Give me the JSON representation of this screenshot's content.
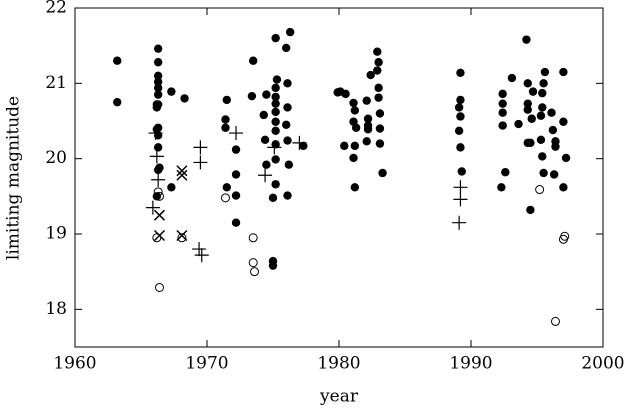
{
  "chart_data": {
    "type": "scatter",
    "x_label": "year",
    "y_label": "limiting magnitude",
    "xlim": [
      1960,
      2000
    ],
    "ylim": [
      17.5,
      22
    ],
    "xticks": [
      1960,
      1970,
      1980,
      1990,
      2000
    ],
    "yticks": [
      18,
      19,
      20,
      21,
      22
    ],
    "series": [
      {
        "marker": "filled-circle",
        "color": "#000000",
        "x": [
          1963.2,
          1963.2,
          1966.3,
          1966.3,
          1966.3,
          1966.3,
          1966.3,
          1966.3,
          1966.2,
          1966.3,
          1966.2,
          1966.3,
          1966.2,
          1966.3,
          1966.3,
          1966.4,
          1966.3,
          1966.2,
          1967.3,
          1968.3,
          1967.3,
          1971.4,
          1971.5,
          1971.4,
          1971.5,
          1972.2,
          1972.2,
          1972.2,
          1972.2,
          1973.5,
          1973.4,
          1974.5,
          1975.2,
          1975.3,
          1975.2,
          1975.2,
          1975.2,
          1975.2,
          1975.2,
          1975.2,
          1975.2,
          1975.2,
          1975.2,
          1975.0,
          1975.0,
          1975.0,
          1976.0,
          1976.3,
          1976.1,
          1976.1,
          1976.0,
          1976.1,
          1976.2,
          1976.1,
          1974.4,
          1974.5,
          1974.3,
          1977.3,
          1979.9,
          1980.1,
          1980.5,
          1980.4,
          1981.1,
          1981.2,
          1981.1,
          1981.3,
          1981.2,
          1981.1,
          1981.2,
          1982.1,
          1982.2,
          1982.2,
          1982.2,
          1982.1,
          1982.4,
          1982.9,
          1983.0,
          1982.9,
          1983.0,
          1983.0,
          1983.1,
          1983.1,
          1983.1,
          1983.3,
          1989.2,
          1989.2,
          1989.1,
          1989.2,
          1989.1,
          1989.2,
          1989.3,
          1992.4,
          1992.4,
          1992.4,
          1992.4,
          1992.3,
          1992.6,
          1993.1,
          1993.6,
          1994.2,
          1994.3,
          1994.3,
          1994.3,
          1994.3,
          1994.5,
          1994.7,
          1994.5,
          1994.6,
          1995.6,
          1995.5,
          1995.4,
          1995.4,
          1995.3,
          1995.3,
          1995.4,
          1995.5,
          1996.1,
          1996.2,
          1996.4,
          1996.4,
          1996.3,
          1997.0,
          1997.0,
          1997.0,
          1997.2
        ],
        "values": [
          21.3,
          20.75,
          21.46,
          21.28,
          21.1,
          21.02,
          20.94,
          20.85,
          20.72,
          20.72,
          20.68,
          20.41,
          20.39,
          20.31,
          20.15,
          19.88,
          19.85,
          19.5,
          20.89,
          20.8,
          19.62,
          20.41,
          20.78,
          20.52,
          19.62,
          20.12,
          19.79,
          19.51,
          19.15,
          21.3,
          20.83,
          20.85,
          21.6,
          21.05,
          20.94,
          20.82,
          20.73,
          20.62,
          20.49,
          20.37,
          20.19,
          19.99,
          19.66,
          19.48,
          18.64,
          18.58,
          21.47,
          21.68,
          21.0,
          20.68,
          20.45,
          20.24,
          19.92,
          19.51,
          20.25,
          19.92,
          20.58,
          20.17,
          20.88,
          20.89,
          20.86,
          20.17,
          20.74,
          20.64,
          20.49,
          20.41,
          20.17,
          20.01,
          19.62,
          20.77,
          20.53,
          20.44,
          20.39,
          20.23,
          21.11,
          21.42,
          21.28,
          21.17,
          20.94,
          20.81,
          20.6,
          20.4,
          20.2,
          19.81,
          21.14,
          20.78,
          20.68,
          20.56,
          20.37,
          20.15,
          19.83,
          20.86,
          20.73,
          20.61,
          20.44,
          19.62,
          19.82,
          21.07,
          20.46,
          21.58,
          21.0,
          20.73,
          20.65,
          20.21,
          19.32,
          20.89,
          20.21,
          20.53,
          21.15,
          21.0,
          20.87,
          20.68,
          20.57,
          20.25,
          20.03,
          19.81,
          20.61,
          20.38,
          20.23,
          20.16,
          19.79,
          21.15,
          20.49,
          19.62,
          20.01
        ]
      },
      {
        "marker": "open-circle",
        "color": "#000000",
        "x": [
          1966.3,
          1966.4,
          1966.2,
          1966.4,
          1968.1,
          1971.4,
          1973.5,
          1973.5,
          1973.6,
          1995.2,
          1996.4,
          1997.0,
          1997.1
        ],
        "values": [
          19.56,
          19.5,
          18.95,
          18.29,
          18.95,
          19.48,
          18.95,
          18.62,
          18.5,
          19.59,
          17.84,
          18.93,
          18.97
        ]
      },
      {
        "marker": "plus",
        "color": "#000000",
        "x": [
          1966.1,
          1966.2,
          1966.3,
          1965.9,
          1969.5,
          1969.5,
          1969.4,
          1969.6,
          1972.2,
          1974.4,
          1975.1,
          1977.0,
          1989.2,
          1989.2,
          1989.1
        ],
        "values": [
          20.34,
          20.03,
          19.72,
          19.35,
          20.15,
          19.95,
          18.8,
          18.72,
          20.34,
          19.78,
          20.15,
          20.21,
          19.62,
          19.46,
          19.15
        ]
      },
      {
        "marker": "cross",
        "color": "#000000",
        "x": [
          1966.4,
          1966.4,
          1968.1,
          1968.1,
          1968.1
        ],
        "values": [
          19.25,
          18.98,
          19.84,
          19.78,
          18.98
        ]
      }
    ]
  }
}
